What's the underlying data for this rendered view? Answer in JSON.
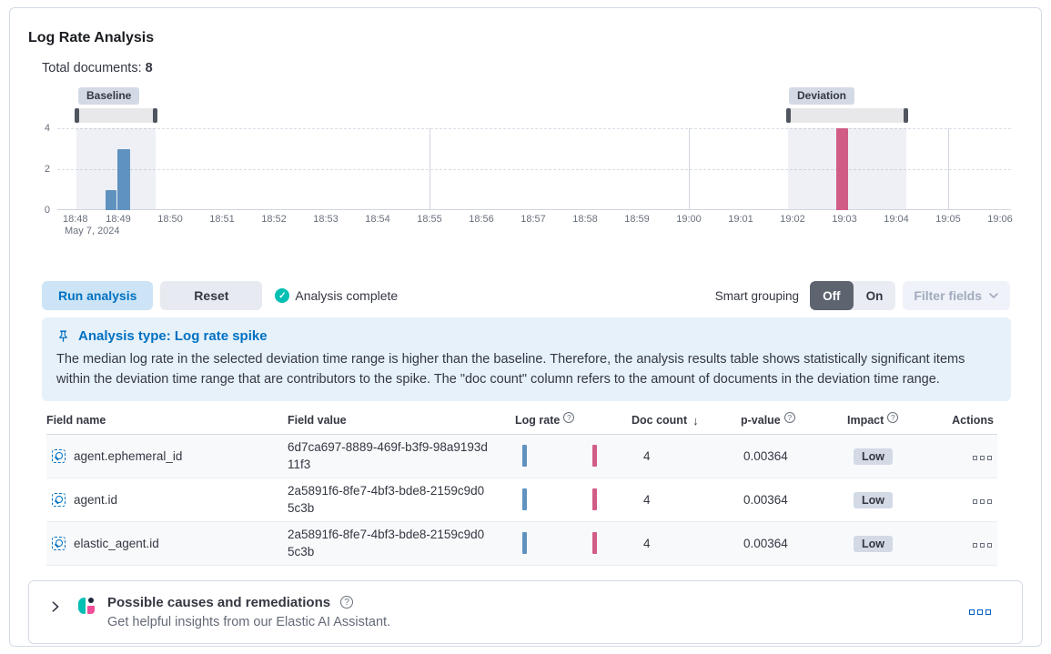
{
  "page": {
    "title": "Log Rate Analysis"
  },
  "summary": {
    "label": "Total documents:",
    "value": "8"
  },
  "chart_data": {
    "type": "bar",
    "title": "Document count over time with baseline and deviation brushes",
    "x_ticks": [
      "18:48",
      "18:49",
      "18:50",
      "18:51",
      "18:52",
      "18:53",
      "18:54",
      "18:55",
      "18:56",
      "18:57",
      "18:58",
      "18:59",
      "19:00",
      "19:01",
      "19:02",
      "19:03",
      "19:04",
      "19:05",
      "19:06"
    ],
    "x_date_label": "May 7, 2024",
    "y_tick_labels": [
      "4",
      "2",
      "0"
    ],
    "ylim": [
      0,
      4
    ],
    "grid": "dashed horizontal at 0/2/4, solid vertical at 5-min marks",
    "major_gridlines": [
      "18:55",
      "19:00",
      "19:05"
    ],
    "baseline": {
      "label": "Baseline",
      "window": [
        "18:48:10",
        "18:49:40"
      ],
      "bars": [
        {
          "time": "18:48:50",
          "value": 1
        },
        {
          "time": "18:49:00",
          "value": 3
        }
      ]
    },
    "deviation": {
      "label": "Deviation",
      "window": [
        "19:02:00",
        "19:04:20"
      ],
      "bars": [
        {
          "time": "19:03:00",
          "value": 4
        }
      ]
    },
    "colors": {
      "baseline_bar": "#6092c0",
      "deviation_bar": "#d15d87",
      "brush_handle": "#4f545f",
      "window_fill": "rgba(84,105,160,0.10)"
    }
  },
  "toolbar": {
    "run_analysis": "Run analysis",
    "reset": "Reset",
    "status": "Analysis complete",
    "status_check": "✓",
    "smart_grouping_label": "Smart grouping",
    "toggle_off": "Off",
    "toggle_on": "On",
    "filter_fields": "Filter fields"
  },
  "callout": {
    "title": "Analysis type: Log rate spike",
    "body": "The median log rate in the selected deviation time range is higher than the baseline. Therefore, the analysis results table shows statistically significant items within the deviation time range that are contributors to the spike. The \"doc count\" column refers to the amount of documents in the deviation time range."
  },
  "table": {
    "headers": {
      "field_name": "Field name",
      "field_value": "Field value",
      "log_rate": "Log rate",
      "doc_count": "Doc count",
      "sort_arrow": "↓",
      "p_value": "p-value",
      "impact": "Impact",
      "actions": "Actions"
    },
    "rows": [
      {
        "field_name": "agent.ephemeral_id",
        "field_value": "6d7ca697-8889-469f-b3f9-98a9193d11f3",
        "doc_count": "4",
        "p_value": "0.00364",
        "impact": "Low"
      },
      {
        "field_name": "agent.id",
        "field_value": "2a5891f6-8fe7-4bf3-bde8-2159c9d05c3b",
        "doc_count": "4",
        "p_value": "0.00364",
        "impact": "Low"
      },
      {
        "field_name": "elastic_agent.id",
        "field_value": "2a5891f6-8fe7-4bf3-bde8-2159c9d05c3b",
        "doc_count": "4",
        "p_value": "0.00364",
        "impact": "Low"
      }
    ]
  },
  "footer": {
    "title": "Possible causes and remediations",
    "subtitle": "Get helpful insights from our Elastic AI Assistant."
  }
}
